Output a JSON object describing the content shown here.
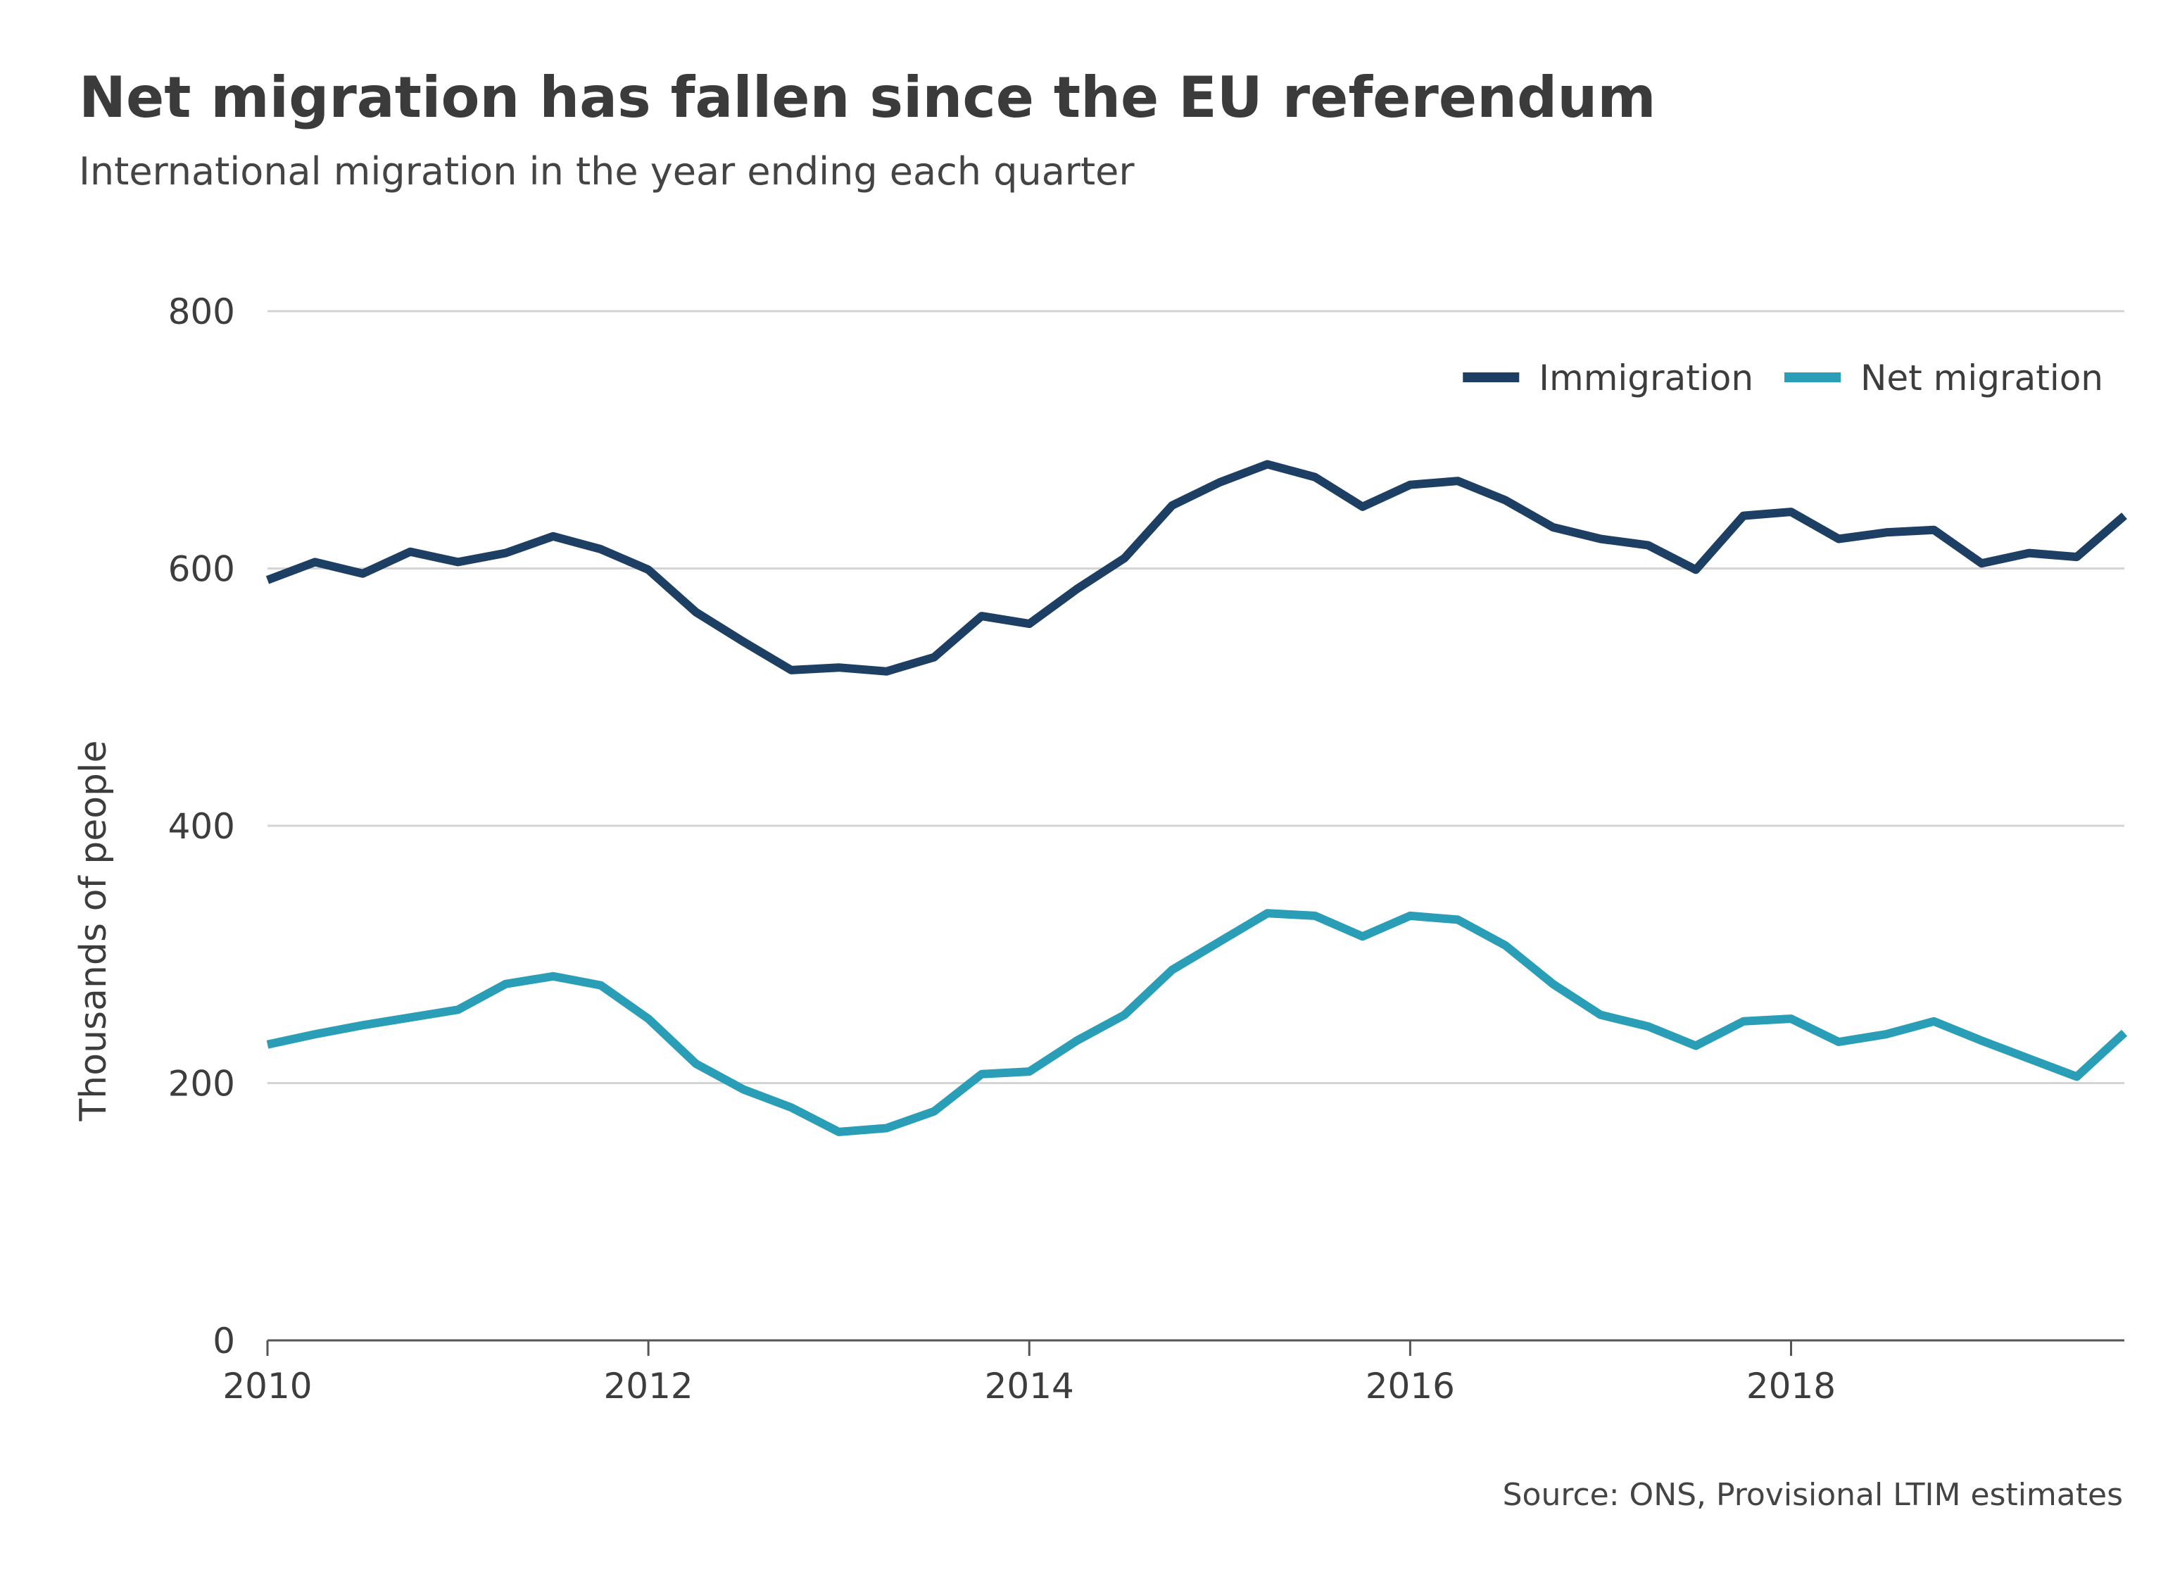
{
  "chart_data": {
    "type": "line",
    "title": "Net migration has fallen since the EU referendum",
    "subtitle": "International migration in the year ending each quarter",
    "ylabel": "Thousands of people",
    "xlabel": "",
    "ylim": [
      0,
      800
    ],
    "yticks": [
      0,
      200,
      400,
      600,
      800
    ],
    "xlim": [
      2010,
      2019.75
    ],
    "xticks": [
      2010,
      2012,
      2014,
      2016,
      2018
    ],
    "xtick_labels": [
      "2010",
      "2012",
      "2014",
      "2016",
      "2018"
    ],
    "grid": "horizontal",
    "legend_position": "top-right",
    "source": "Source: ONS, Provisional LTIM estimates",
    "x": [
      2010,
      2010.25,
      2010.5,
      2010.75,
      2011,
      2011.25,
      2011.5,
      2011.75,
      2012,
      2012.25,
      2012.5,
      2012.75,
      2013,
      2013.25,
      2013.5,
      2013.75,
      2014,
      2014.25,
      2014.5,
      2014.75,
      2015,
      2015.25,
      2015.5,
      2015.75,
      2016,
      2016.25,
      2016.5,
      2016.75,
      2017,
      2017.25,
      2017.5,
      2017.75,
      2018,
      2018.25,
      2018.5,
      2018.75,
      2019,
      2019.25,
      2019.5,
      2019.75
    ],
    "series": [
      {
        "name": "Immigration",
        "color": "#1d3f63",
        "values": [
          591,
          605,
          596,
          613,
          605,
          612,
          625,
          615,
          599,
          566,
          543,
          521,
          523,
          520,
          531,
          563,
          557,
          584,
          608,
          649,
          667,
          681,
          671,
          648,
          665,
          668,
          653,
          632,
          623,
          618,
          599,
          641,
          644,
          623,
          628,
          630,
          604,
          612,
          609,
          641
        ]
      },
      {
        "name": "Net migration",
        "color": "#2a9db7",
        "values": [
          230,
          238,
          245,
          251,
          257,
          277,
          283,
          276,
          250,
          215,
          195,
          181,
          162,
          165,
          178,
          207,
          209,
          233,
          253,
          288,
          310,
          332,
          330,
          314,
          330,
          327,
          307,
          277,
          253,
          244,
          229,
          248,
          250,
          232,
          238,
          248,
          233,
          219,
          205,
          239
        ]
      }
    ]
  }
}
